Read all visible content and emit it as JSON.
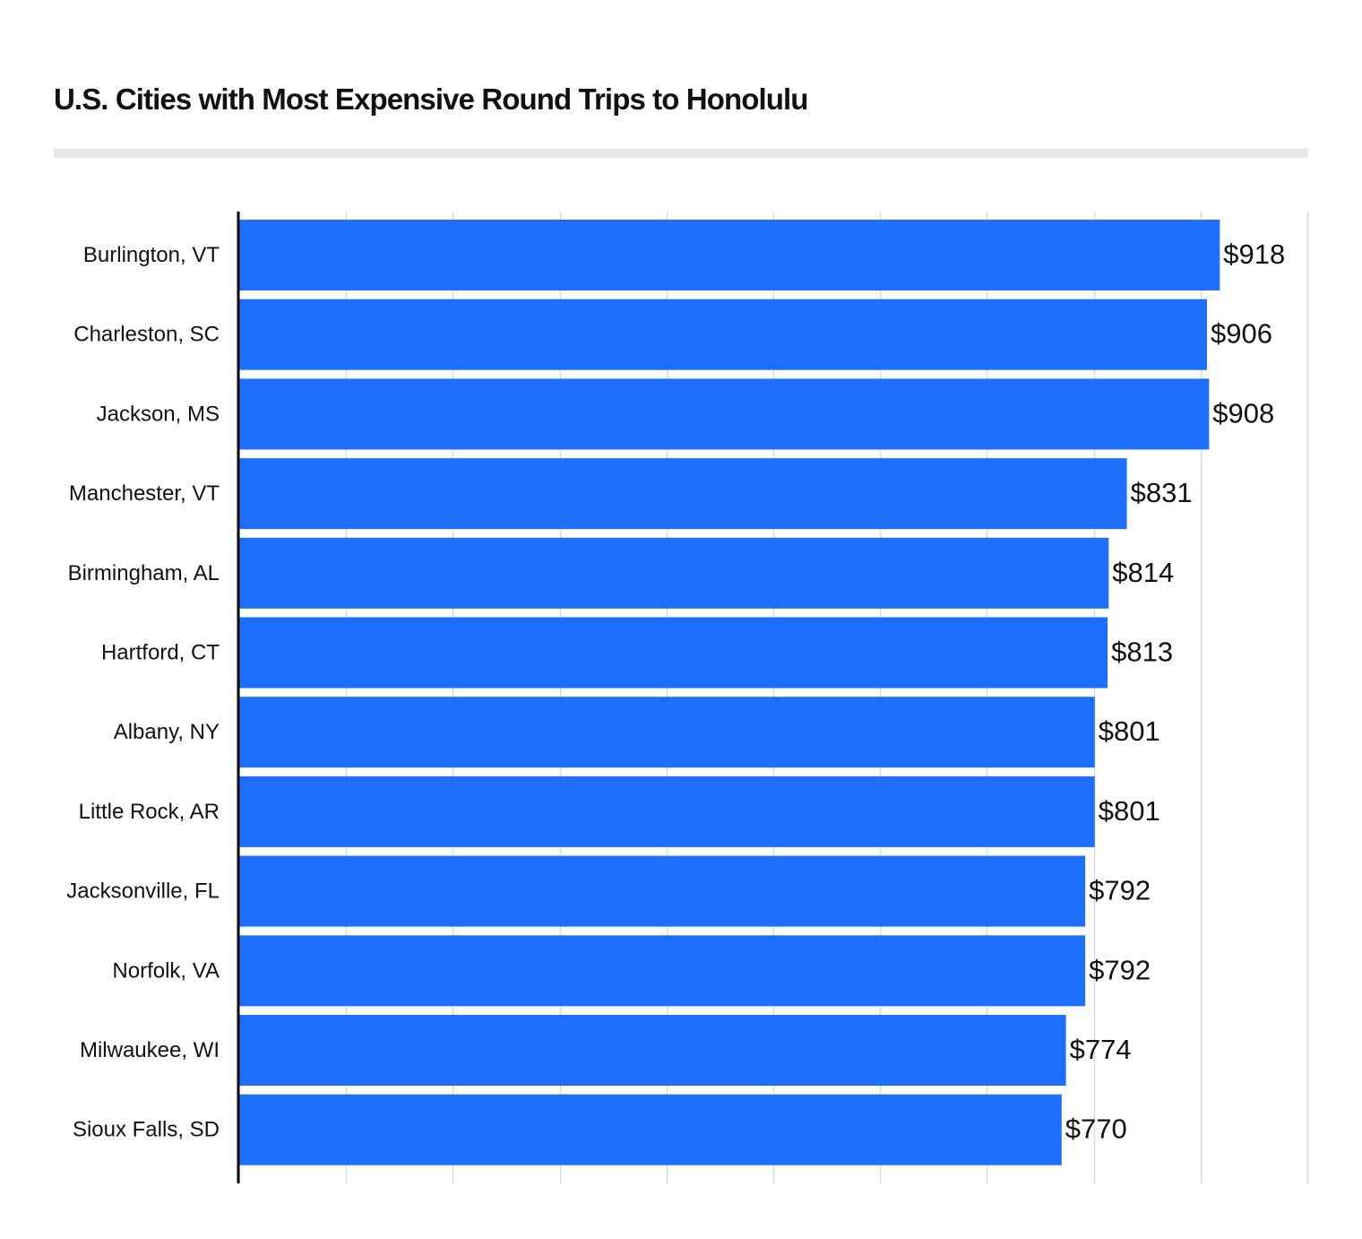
{
  "chart_data": {
    "type": "bar",
    "orientation": "horizontal",
    "title": "U.S. Cities with Most Expensive Round Trips to Honolulu",
    "categories": [
      "Burlington, VT",
      "Charleston, SC",
      "Jackson, MS",
      "Manchester, VT",
      "Birmingham, AL",
      "Hartford, CT",
      "Albany, NY",
      "Little Rock, AR",
      "Jacksonville, FL",
      "Norfolk, VA",
      "Milwaukee, WI",
      "Sioux Falls, SD"
    ],
    "values": [
      918,
      906,
      908,
      831,
      814,
      813,
      801,
      801,
      792,
      792,
      774,
      770
    ],
    "value_labels": [
      "$918",
      "$906",
      "$908",
      "$831",
      "$814",
      "$813",
      "$801",
      "$801",
      "$792",
      "$792",
      "$774",
      "$770"
    ],
    "xlim": [
      0,
      1000
    ],
    "xlabel": "",
    "ylabel": "",
    "grid": true,
    "x_tick_labels_shown": false,
    "legend": "none",
    "bar_color": "#1f6fff",
    "gridline_color": "#d9d9d9",
    "axis_color": "#000000",
    "title_rule_color": "#e6e6e6"
  }
}
